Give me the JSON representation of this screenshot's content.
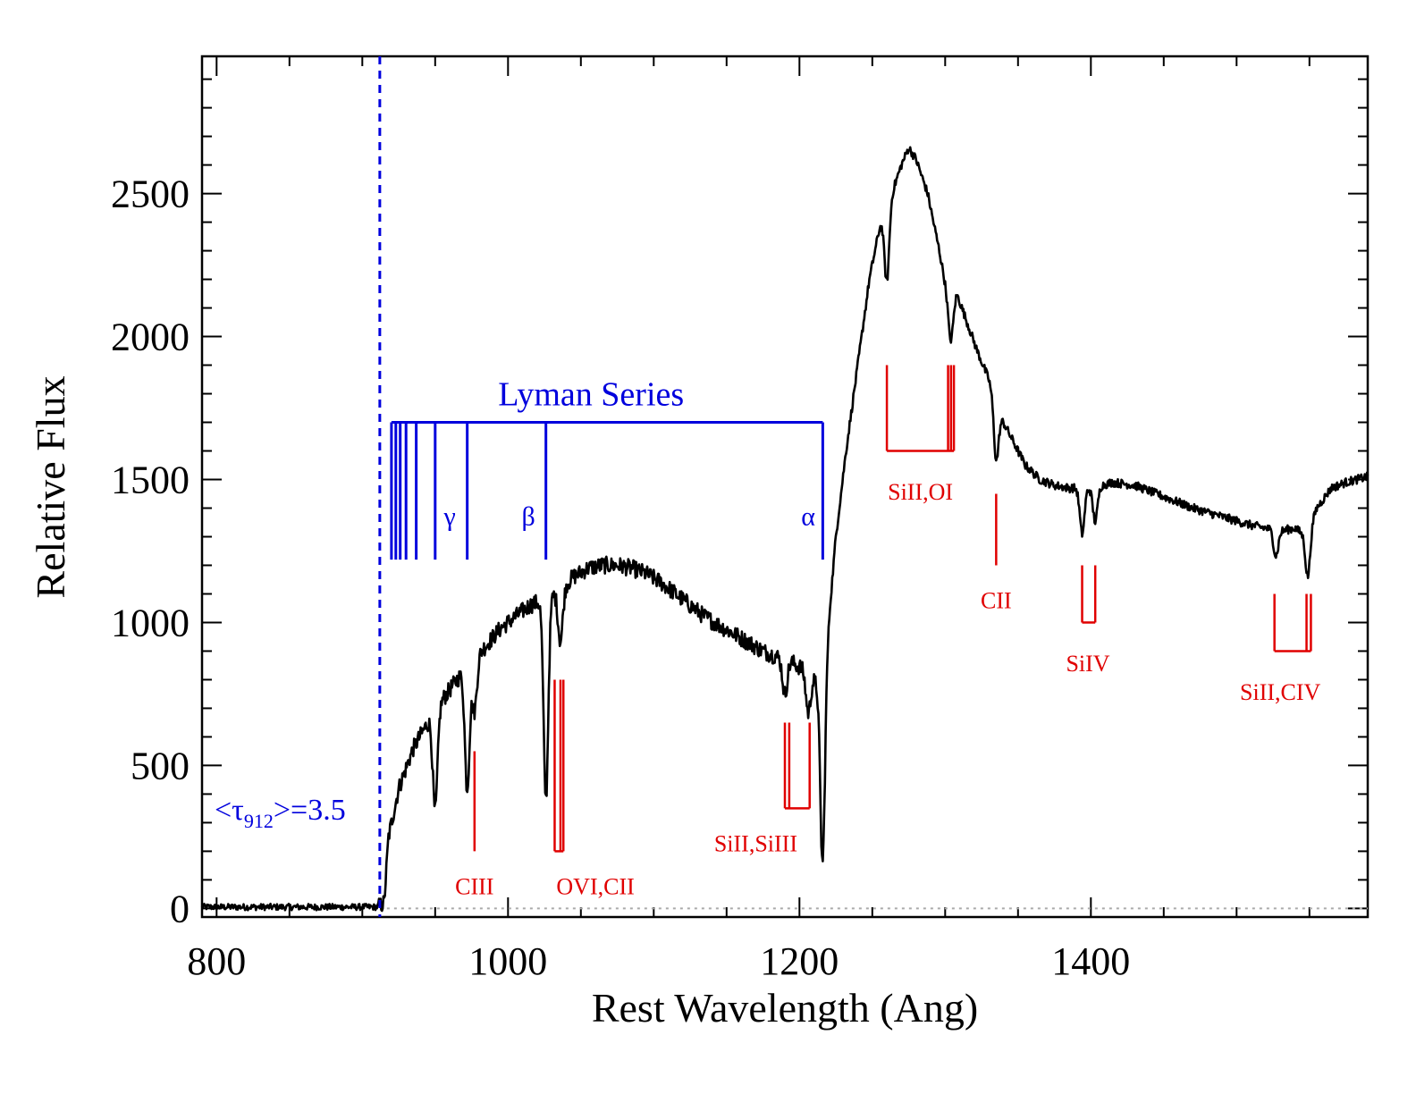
{
  "chart_data": {
    "type": "line",
    "xlabel": "Rest Wavelength (Ang)",
    "ylabel": "Relative Flux",
    "xlim": [
      790,
      1590
    ],
    "ylim": [
      -30,
      2980
    ],
    "xticks": [
      800,
      1000,
      1200,
      1400
    ],
    "yticks": [
      0,
      500,
      1000,
      1500,
      2000,
      2500
    ],
    "grid": false,
    "colors": {
      "spectrum": "#000000",
      "lyman": "#0000dd",
      "metal": "#e00000",
      "zero": "#aaaaaa"
    },
    "spectrum_anchors": {
      "x": [
        790,
        911,
        915,
        918,
        925,
        935,
        945,
        955,
        965,
        975,
        985,
        995,
        1005,
        1015,
        1025,
        1035,
        1045,
        1055,
        1065,
        1075,
        1085,
        1095,
        1105,
        1115,
        1125,
        1135,
        1145,
        1155,
        1165,
        1175,
        1185,
        1195,
        1205,
        1210,
        1215,
        1220,
        1225,
        1232,
        1240,
        1248,
        1255,
        1262,
        1270,
        1275,
        1280,
        1288,
        1296,
        1303,
        1308,
        1315,
        1322,
        1330,
        1338,
        1345,
        1355,
        1365,
        1375,
        1385,
        1400,
        1415,
        1430,
        1450,
        1470,
        1490,
        1510,
        1530,
        1540,
        1548,
        1555,
        1565,
        1575,
        1590
      ],
      "y": [
        5,
        5,
        20,
        250,
        420,
        560,
        650,
        730,
        800,
        860,
        920,
        980,
        1020,
        1060,
        1080,
        1110,
        1160,
        1190,
        1200,
        1200,
        1190,
        1170,
        1140,
        1100,
        1060,
        1020,
        990,
        960,
        930,
        900,
        880,
        860,
        830,
        800,
        760,
        1000,
        1300,
        1600,
        1900,
        2200,
        2380,
        2480,
        2600,
        2660,
        2620,
        2500,
        2300,
        2100,
        2150,
        2050,
        1950,
        1850,
        1720,
        1650,
        1550,
        1500,
        1480,
        1470,
        1470,
        1490,
        1480,
        1440,
        1400,
        1370,
        1340,
        1320,
        1330,
        1300,
        1400,
        1470,
        1490,
        1510
      ]
    },
    "absorption_dips": [
      {
        "x": 950,
        "depth": 350
      },
      {
        "x": 972,
        "depth": 420
      },
      {
        "x": 977,
        "depth": 180
      },
      {
        "x": 1026,
        "depth": 700
      },
      {
        "x": 1036,
        "depth": 180
      },
      {
        "x": 1190,
        "depth": 120
      },
      {
        "x": 1206,
        "depth": 140
      },
      {
        "x": 1216,
        "depth": 640
      },
      {
        "x": 1260,
        "depth": 260
      },
      {
        "x": 1304,
        "depth": 120
      },
      {
        "x": 1335,
        "depth": 200
      },
      {
        "x": 1394,
        "depth": 160
      },
      {
        "x": 1403,
        "depth": 120
      },
      {
        "x": 1527,
        "depth": 90
      },
      {
        "x": 1549,
        "depth": 150
      }
    ],
    "cutoff_line": {
      "x": 912
    },
    "tau_label": {
      "prefix": "<τ",
      "subscript": "912",
      "suffix": ">=3.5"
    },
    "lyman_series": {
      "title": "Lyman Series",
      "bar_y": 1700,
      "line_bottom": 1220,
      "lines": [
        920,
        923,
        926,
        930,
        937,
        950,
        972,
        1026,
        1216
      ],
      "labels": [
        {
          "text": "γ",
          "x": 960
        },
        {
          "text": "β",
          "x": 1014
        },
        {
          "text": "α",
          "x": 1206
        }
      ],
      "label_y": 1340
    },
    "metal_lines": [
      {
        "label": "CIII",
        "lines": [
          977
        ],
        "top": 550,
        "bottom": 200,
        "label_x": 977,
        "label_y": 50
      },
      {
        "label": "OVI,CII",
        "lines": [
          1032,
          1038,
          1036
        ],
        "top": 800,
        "bottom": 200,
        "label_x": 1060,
        "label_y": 50
      },
      {
        "label": "SiII,SiIII",
        "lines": [
          1190,
          1193,
          1207
        ],
        "top": 650,
        "bottom": 350,
        "label_x": 1170,
        "label_y": 200
      },
      {
        "label": "SiII,OI",
        "lines": [
          1260,
          1302,
          1304,
          1306
        ],
        "top": 1900,
        "bottom": 1600,
        "label_x": 1283,
        "label_y": 1430
      },
      {
        "label": "CII",
        "lines": [
          1335
        ],
        "top": 1450,
        "bottom": 1200,
        "label_x": 1335,
        "label_y": 1050
      },
      {
        "label": "SiIV",
        "lines": [
          1394,
          1403
        ],
        "top": 1200,
        "bottom": 1000,
        "label_x": 1398,
        "label_y": 830
      },
      {
        "label": "SiII,CIV",
        "lines": [
          1526,
          1548,
          1551
        ],
        "top": 1100,
        "bottom": 900,
        "label_x": 1530,
        "label_y": 730
      }
    ]
  }
}
